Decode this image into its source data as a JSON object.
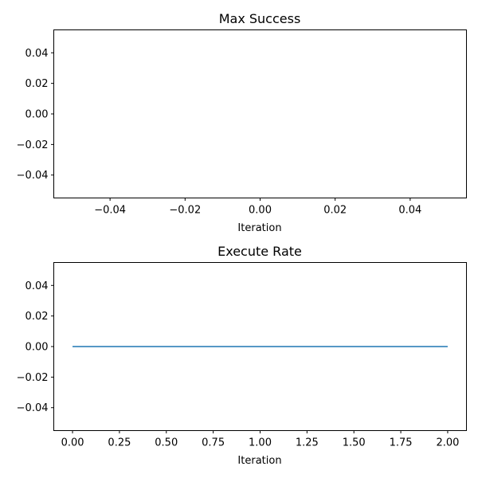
{
  "chart_data": [
    {
      "type": "line",
      "title": "Max Success",
      "xlabel": "Iteration",
      "ylabel": "",
      "xlim": [
        -0.055,
        0.055
      ],
      "ylim": [
        -0.055,
        0.055
      ],
      "xticks": [
        -0.04,
        -0.02,
        0.0,
        0.02,
        0.04
      ],
      "xtick_labels": [
        "−0.04",
        "−0.02",
        "0.00",
        "0.02",
        "0.04"
      ],
      "yticks": [
        0.04,
        0.02,
        0.0,
        -0.02,
        -0.04
      ],
      "ytick_labels": [
        "0.04",
        "0.02",
        "0.00",
        "−0.02",
        "−0.04"
      ],
      "grid": false,
      "series": [
        {
          "x": [],
          "y": [],
          "color": "#1f77b4"
        }
      ]
    },
    {
      "type": "line",
      "title": "Execute Rate",
      "xlabel": "Iteration",
      "ylabel": "",
      "xlim": [
        -0.1,
        2.1
      ],
      "ylim": [
        -0.055,
        0.055
      ],
      "xticks": [
        0.0,
        0.25,
        0.5,
        0.75,
        1.0,
        1.25,
        1.5,
        1.75,
        2.0
      ],
      "xtick_labels": [
        "0.00",
        "0.25",
        "0.50",
        "0.75",
        "1.00",
        "1.25",
        "1.50",
        "1.75",
        "2.00"
      ],
      "yticks": [
        0.04,
        0.02,
        0.0,
        -0.02,
        -0.04
      ],
      "ytick_labels": [
        "0.04",
        "0.02",
        "0.00",
        "−0.02",
        "−0.04"
      ],
      "grid": false,
      "series": [
        {
          "x": [
            0,
            1,
            2
          ],
          "y": [
            0,
            0,
            0
          ],
          "color": "#1f77b4"
        }
      ]
    }
  ]
}
